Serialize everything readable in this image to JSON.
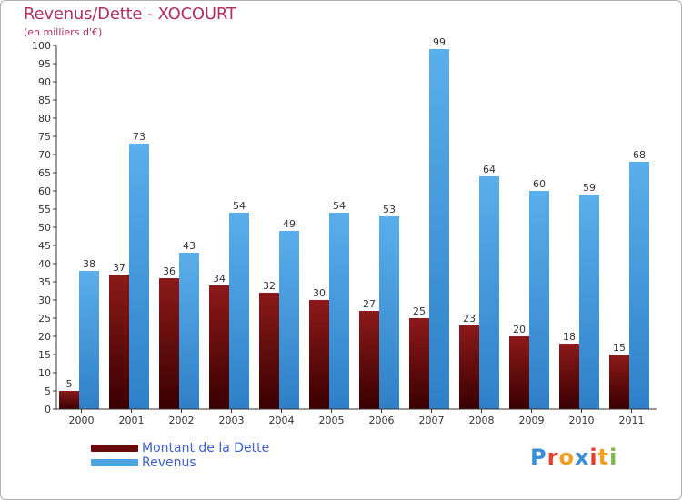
{
  "title": "Revenus/Dette - XOCOURT",
  "subtitle": "(en milliers d'€)",
  "colors": {
    "dette": "#7a1010",
    "revenus": "#4ea3e3",
    "title": "#b03060",
    "legend_text": "#4060d0"
  },
  "chart_data": {
    "type": "bar",
    "title": "Revenus/Dette - XOCOURT",
    "ylabel": "(en milliers d'€)",
    "xlabel": "",
    "ylim": [
      0,
      100
    ],
    "ytick_step": 5,
    "categories": [
      "2000",
      "2001",
      "2002",
      "2003",
      "2004",
      "2005",
      "2006",
      "2007",
      "2008",
      "2009",
      "2010",
      "2011"
    ],
    "series": [
      {
        "name": "Montant de la Dette",
        "values": [
          5,
          37,
          36,
          34,
          32,
          30,
          27,
          25,
          23,
          20,
          18,
          15
        ]
      },
      {
        "name": "Revenus",
        "values": [
          38,
          73,
          43,
          54,
          49,
          54,
          53,
          99,
          64,
          60,
          59,
          68
        ]
      }
    ],
    "legend_position": "bottom-left",
    "grid": false
  },
  "legend": {
    "items": [
      {
        "label": "Montant de la Dette",
        "icon": "dark-red-bar-swatch"
      },
      {
        "label": "Revenus",
        "icon": "blue-bar-swatch"
      }
    ]
  },
  "logo": {
    "text": "Proxiti",
    "letters": [
      "P",
      "r",
      "o",
      "x",
      "i",
      "t",
      "i"
    ],
    "colors": [
      "#3b8fd8",
      "#e2402f",
      "#f0a020",
      "#3b8fd8",
      "#e2402f",
      "#f0a020",
      "#7ab648"
    ]
  }
}
